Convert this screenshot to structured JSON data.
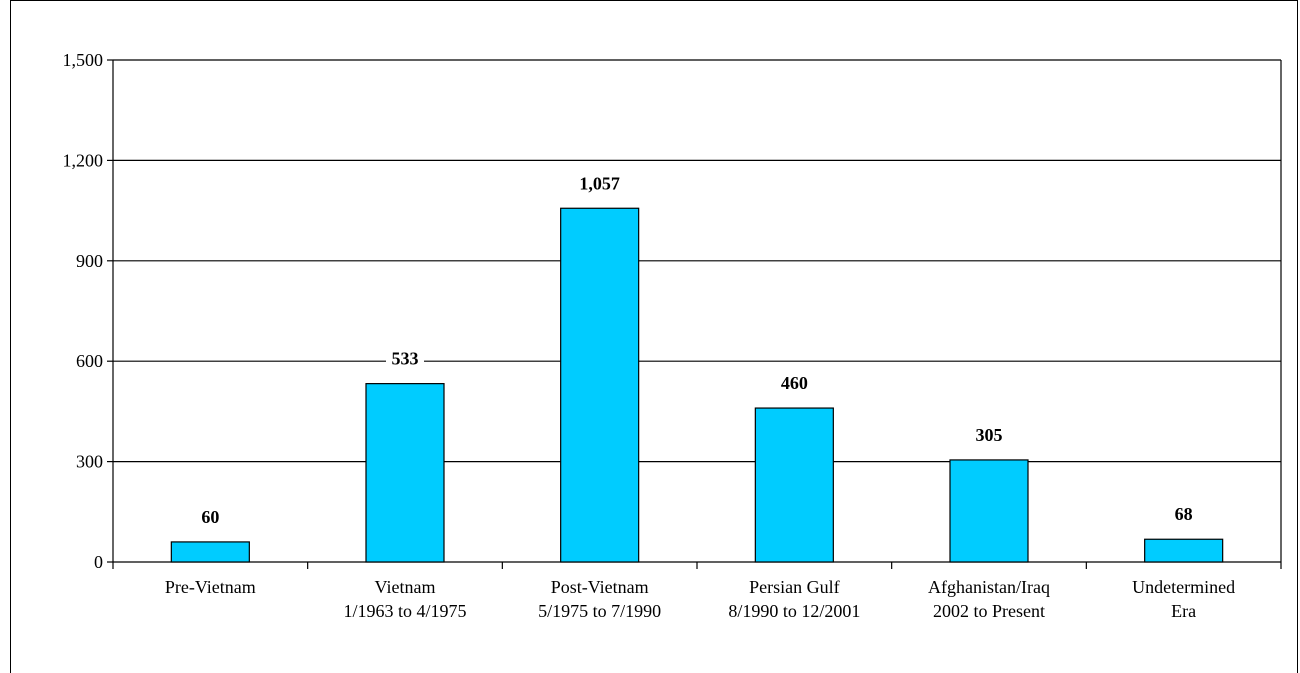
{
  "chart_data": {
    "type": "bar",
    "title": "",
    "xlabel": "",
    "ylabel": "",
    "categories": [
      [
        "Pre-Vietnam"
      ],
      [
        "Vietnam",
        "1/1963 to 4/1975"
      ],
      [
        "Post-Vietnam",
        "5/1975 to 7/1990"
      ],
      [
        "Persian Gulf",
        "8/1990 to 12/2001"
      ],
      [
        "Afghanistan/Iraq",
        "2002 to Present"
      ],
      [
        "Undetermined",
        "Era"
      ]
    ],
    "values": [
      60,
      533,
      1057,
      460,
      305,
      68
    ],
    "data_labels": [
      "60",
      "533",
      "1,057",
      "460",
      "305",
      "68"
    ],
    "y_ticks": [
      0,
      300,
      600,
      900,
      1200,
      1500
    ],
    "y_tick_labels": [
      "0",
      "300",
      "600",
      "900",
      "1,200",
      "1,500"
    ],
    "ylim": [
      0,
      1500
    ],
    "grid": true,
    "legend": "none",
    "bar_color": "#00CCFF"
  }
}
